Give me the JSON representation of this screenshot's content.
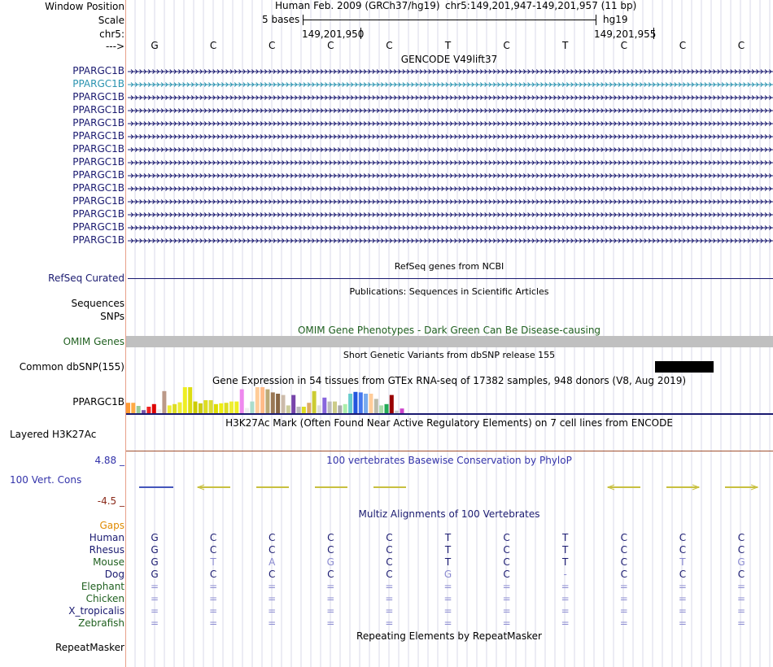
{
  "header": {
    "window_position_label": "Window Position",
    "scale_label": "Scale",
    "chrom_label": "chr5:",
    "strand_label": "--->",
    "assembly_text": "Human Feb. 2009 (GRCh37/hg19)",
    "range_text": "chr5:149,201,947-149,201,957 (11 bp)",
    "scale_text": "5 bases",
    "db_text": "hg19",
    "pos1": "149,201,950",
    "pos2": "149,201,955",
    "bases": [
      "G",
      "C",
      "C",
      "C",
      "C",
      "T",
      "C",
      "T",
      "C",
      "C",
      "C"
    ]
  },
  "gencode": {
    "title": "GENCODE V49lift37",
    "transcripts": [
      "PPARGC1B",
      "PPARGC1B",
      "PPARGC1B",
      "PPARGC1B",
      "PPARGC1B",
      "PPARGC1B",
      "PPARGC1B",
      "PPARGC1B",
      "PPARGC1B",
      "PPARGC1B",
      "PPARGC1B",
      "PPARGC1B",
      "PPARGC1B",
      "PPARGC1B"
    ],
    "highlight_index": 1,
    "color": "#1a1a70",
    "highlight_color": "#2a93b0"
  },
  "refseq": {
    "title": "RefSeq genes from NCBI",
    "label": "RefSeq Curated",
    "color": "#1a1a70"
  },
  "publications": {
    "title": "Publications: Sequences in Scientific Articles",
    "label": "Sequences"
  },
  "snps": {
    "label": "SNPs"
  },
  "omim": {
    "title": "OMIM Gene Phenotypes - Dark Green Can Be Disease-causing",
    "label": "OMIM Genes",
    "color": "#206020"
  },
  "dbsnp": {
    "title": "Short Genetic Variants from dbSNP release 155",
    "label": "Common dbSNP(155)"
  },
  "gtex": {
    "title": "Gene Expression in 54 tissues from GTEx RNA-seq of 17382 samples, 948 donors (V8, Aug 2019)",
    "label": "PPARGC1B",
    "bars": [
      {
        "h": 0.4,
        "c": "#ff9933"
      },
      {
        "h": 0.4,
        "c": "#ffaa44"
      },
      {
        "h": 0.28,
        "c": "#99cc99"
      },
      {
        "h": 0.12,
        "c": "#7755aa"
      },
      {
        "h": 0.25,
        "c": "#ee2222"
      },
      {
        "h": 0.35,
        "c": "#dd0000"
      },
      {
        "h": 0.15,
        "c": "#eeeeee"
      },
      {
        "h": 0.85,
        "c": "#bb9988"
      },
      {
        "h": 0.3,
        "c": "#eeee33"
      },
      {
        "h": 0.35,
        "c": "#dddd22"
      },
      {
        "h": 0.42,
        "c": "#eeee33"
      },
      {
        "h": 1.0,
        "c": "#eeee22"
      },
      {
        "h": 1.0,
        "c": "#dddd11"
      },
      {
        "h": 0.45,
        "c": "#cccc00"
      },
      {
        "h": 0.38,
        "c": "#cccc11"
      },
      {
        "h": 0.5,
        "c": "#dddd22"
      },
      {
        "h": 0.5,
        "c": "#dddd33"
      },
      {
        "h": 0.35,
        "c": "#dddd00"
      },
      {
        "h": 0.38,
        "c": "#eeee11"
      },
      {
        "h": 0.4,
        "c": "#dddd22"
      },
      {
        "h": 0.45,
        "c": "#eeee33"
      },
      {
        "h": 0.45,
        "c": "#eeee22"
      },
      {
        "h": 0.92,
        "c": "#ee88ee"
      },
      {
        "h": 0.2,
        "c": "#eeeeee"
      },
      {
        "h": 0.45,
        "c": "#aaddcc"
      },
      {
        "h": 1.0,
        "c": "#ffcc99"
      },
      {
        "h": 1.0,
        "c": "#ffbb88"
      },
      {
        "h": 0.92,
        "c": "#bbaa77"
      },
      {
        "h": 0.8,
        "c": "#997755"
      },
      {
        "h": 0.75,
        "c": "#886644"
      },
      {
        "h": 0.7,
        "c": "#ccbbaa"
      },
      {
        "h": 0.3,
        "c": "#cccc99"
      },
      {
        "h": 0.7,
        "c": "#7744aa"
      },
      {
        "h": 0.25,
        "c": "#bbbbbb"
      },
      {
        "h": 0.25,
        "c": "#dddd22"
      },
      {
        "h": 0.4,
        "c": "#ddaa66"
      },
      {
        "h": 0.85,
        "c": "#cccc33"
      },
      {
        "h": 0.3,
        "c": "#dddddd"
      },
      {
        "h": 0.6,
        "c": "#8866dd"
      },
      {
        "h": 0.45,
        "c": "#bbbbbb"
      },
      {
        "h": 0.45,
        "c": "#cccc88"
      },
      {
        "h": 0.3,
        "c": "#aaaaaa"
      },
      {
        "h": 0.35,
        "c": "#aaeeaa"
      },
      {
        "h": 0.75,
        "c": "#66cccc"
      },
      {
        "h": 0.82,
        "c": "#2255dd"
      },
      {
        "h": 0.8,
        "c": "#4477ee"
      },
      {
        "h": 0.75,
        "c": "#77aaee"
      },
      {
        "h": 0.75,
        "c": "#ffcc99"
      },
      {
        "h": 0.55,
        "c": "#bbbbaa"
      },
      {
        "h": 0.3,
        "c": "#aaddaa"
      },
      {
        "h": 0.35,
        "c": "#22aa55"
      },
      {
        "h": 0.7,
        "c": "#990000"
      },
      {
        "h": 0.1,
        "c": "#cccccc"
      },
      {
        "h": 0.18,
        "c": "#cc44cc"
      }
    ]
  },
  "h3k27ac": {
    "title": "H3K27Ac Mark (Often Found Near Active Regulatory Elements) on 7 cell lines from ENCODE",
    "label": "Layered H3K27Ac"
  },
  "phylop": {
    "title": "100 vertebrates Basewise Conservation by PhyloP",
    "label": "100 Vert. Cons",
    "ymax": "4.88 _",
    "ymin": "-4.5 _",
    "color": "#3333aa"
  },
  "multiz": {
    "title": "Multiz Alignments of 100 Vertebrates",
    "gaps_label": "Gaps",
    "gaps_color": "#e08a00",
    "species": [
      {
        "name": "Human",
        "color": "#1a1a70",
        "bases": [
          "G",
          "C",
          "C",
          "C",
          "C",
          "T",
          "C",
          "T",
          "C",
          "C",
          "C"
        ]
      },
      {
        "name": "Rhesus",
        "color": "#1a1a70",
        "bases": [
          "G",
          "C",
          "C",
          "C",
          "C",
          "T",
          "C",
          "T",
          "C",
          "C",
          "C"
        ]
      },
      {
        "name": "Mouse",
        "color": "#206020",
        "bases": [
          "G",
          "T",
          "A",
          "G",
          "C",
          "T",
          "C",
          "T",
          "C",
          "T",
          "G"
        ]
      },
      {
        "name": "Dog",
        "color": "#1a1a70",
        "bases": [
          "G",
          "C",
          "C",
          "C",
          "C",
          "G",
          "C",
          "-",
          "C",
          "C",
          "C"
        ]
      },
      {
        "name": "Elephant",
        "color": "#206020",
        "bases": [
          "=",
          "=",
          "=",
          "=",
          "=",
          "=",
          "=",
          "=",
          "=",
          "=",
          "="
        ]
      },
      {
        "name": "Chicken",
        "color": "#206020",
        "bases": [
          "=",
          "=",
          "=",
          "=",
          "=",
          "=",
          "=",
          "=",
          "=",
          "=",
          "="
        ]
      },
      {
        "name": "X_tropicalis",
        "color": "#1a1a70",
        "bases": [
          "=",
          "=",
          "=",
          "=",
          "=",
          "=",
          "=",
          "=",
          "=",
          "=",
          "="
        ]
      },
      {
        "name": "Zebrafish",
        "color": "#206020",
        "bases": [
          "=",
          "=",
          "=",
          "=",
          "=",
          "=",
          "=",
          "=",
          "=",
          "=",
          "="
        ]
      }
    ]
  },
  "repeatmasker": {
    "title": "Repeating Elements by RepeatMasker",
    "label": "RepeatMasker"
  }
}
